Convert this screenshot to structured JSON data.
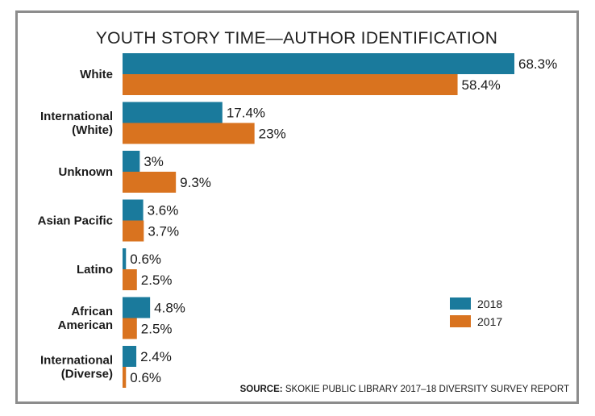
{
  "chart_data": {
    "type": "bar",
    "orientation": "horizontal",
    "title": "YOUTH STORY TIME—AUTHOR IDENTIFICATION",
    "categories": [
      [
        "White"
      ],
      [
        "International",
        "(White)"
      ],
      [
        "Unknown"
      ],
      [
        "Asian Pacific"
      ],
      [
        "Latino"
      ],
      [
        "African",
        "American"
      ],
      [
        "International",
        "(Diverse)"
      ]
    ],
    "series": [
      {
        "name": "2018",
        "color": "#1a7a9c",
        "values": [
          68.3,
          17.4,
          3,
          3.6,
          0.6,
          4.8,
          2.4
        ],
        "labels": [
          "68.3%",
          "17.4%",
          "3%",
          "3.6%",
          "0.6%",
          "4.8%",
          "2.4%"
        ]
      },
      {
        "name": "2017",
        "color": "#d9731f",
        "values": [
          58.4,
          23,
          9.3,
          3.7,
          2.5,
          2.5,
          0.6
        ],
        "labels": [
          "58.4%",
          "23%",
          "9.3%",
          "3.7%",
          "2.5%",
          "2.5%",
          "0.6%"
        ]
      }
    ],
    "xlim": [
      0,
      68.3
    ],
    "grid": false,
    "legend_position": "bottom-right",
    "source_label": "SOURCE:",
    "source_text": "SKOKIE PUBLIC LIBRARY 2017–18 DIVERSITY SURVEY REPORT"
  }
}
